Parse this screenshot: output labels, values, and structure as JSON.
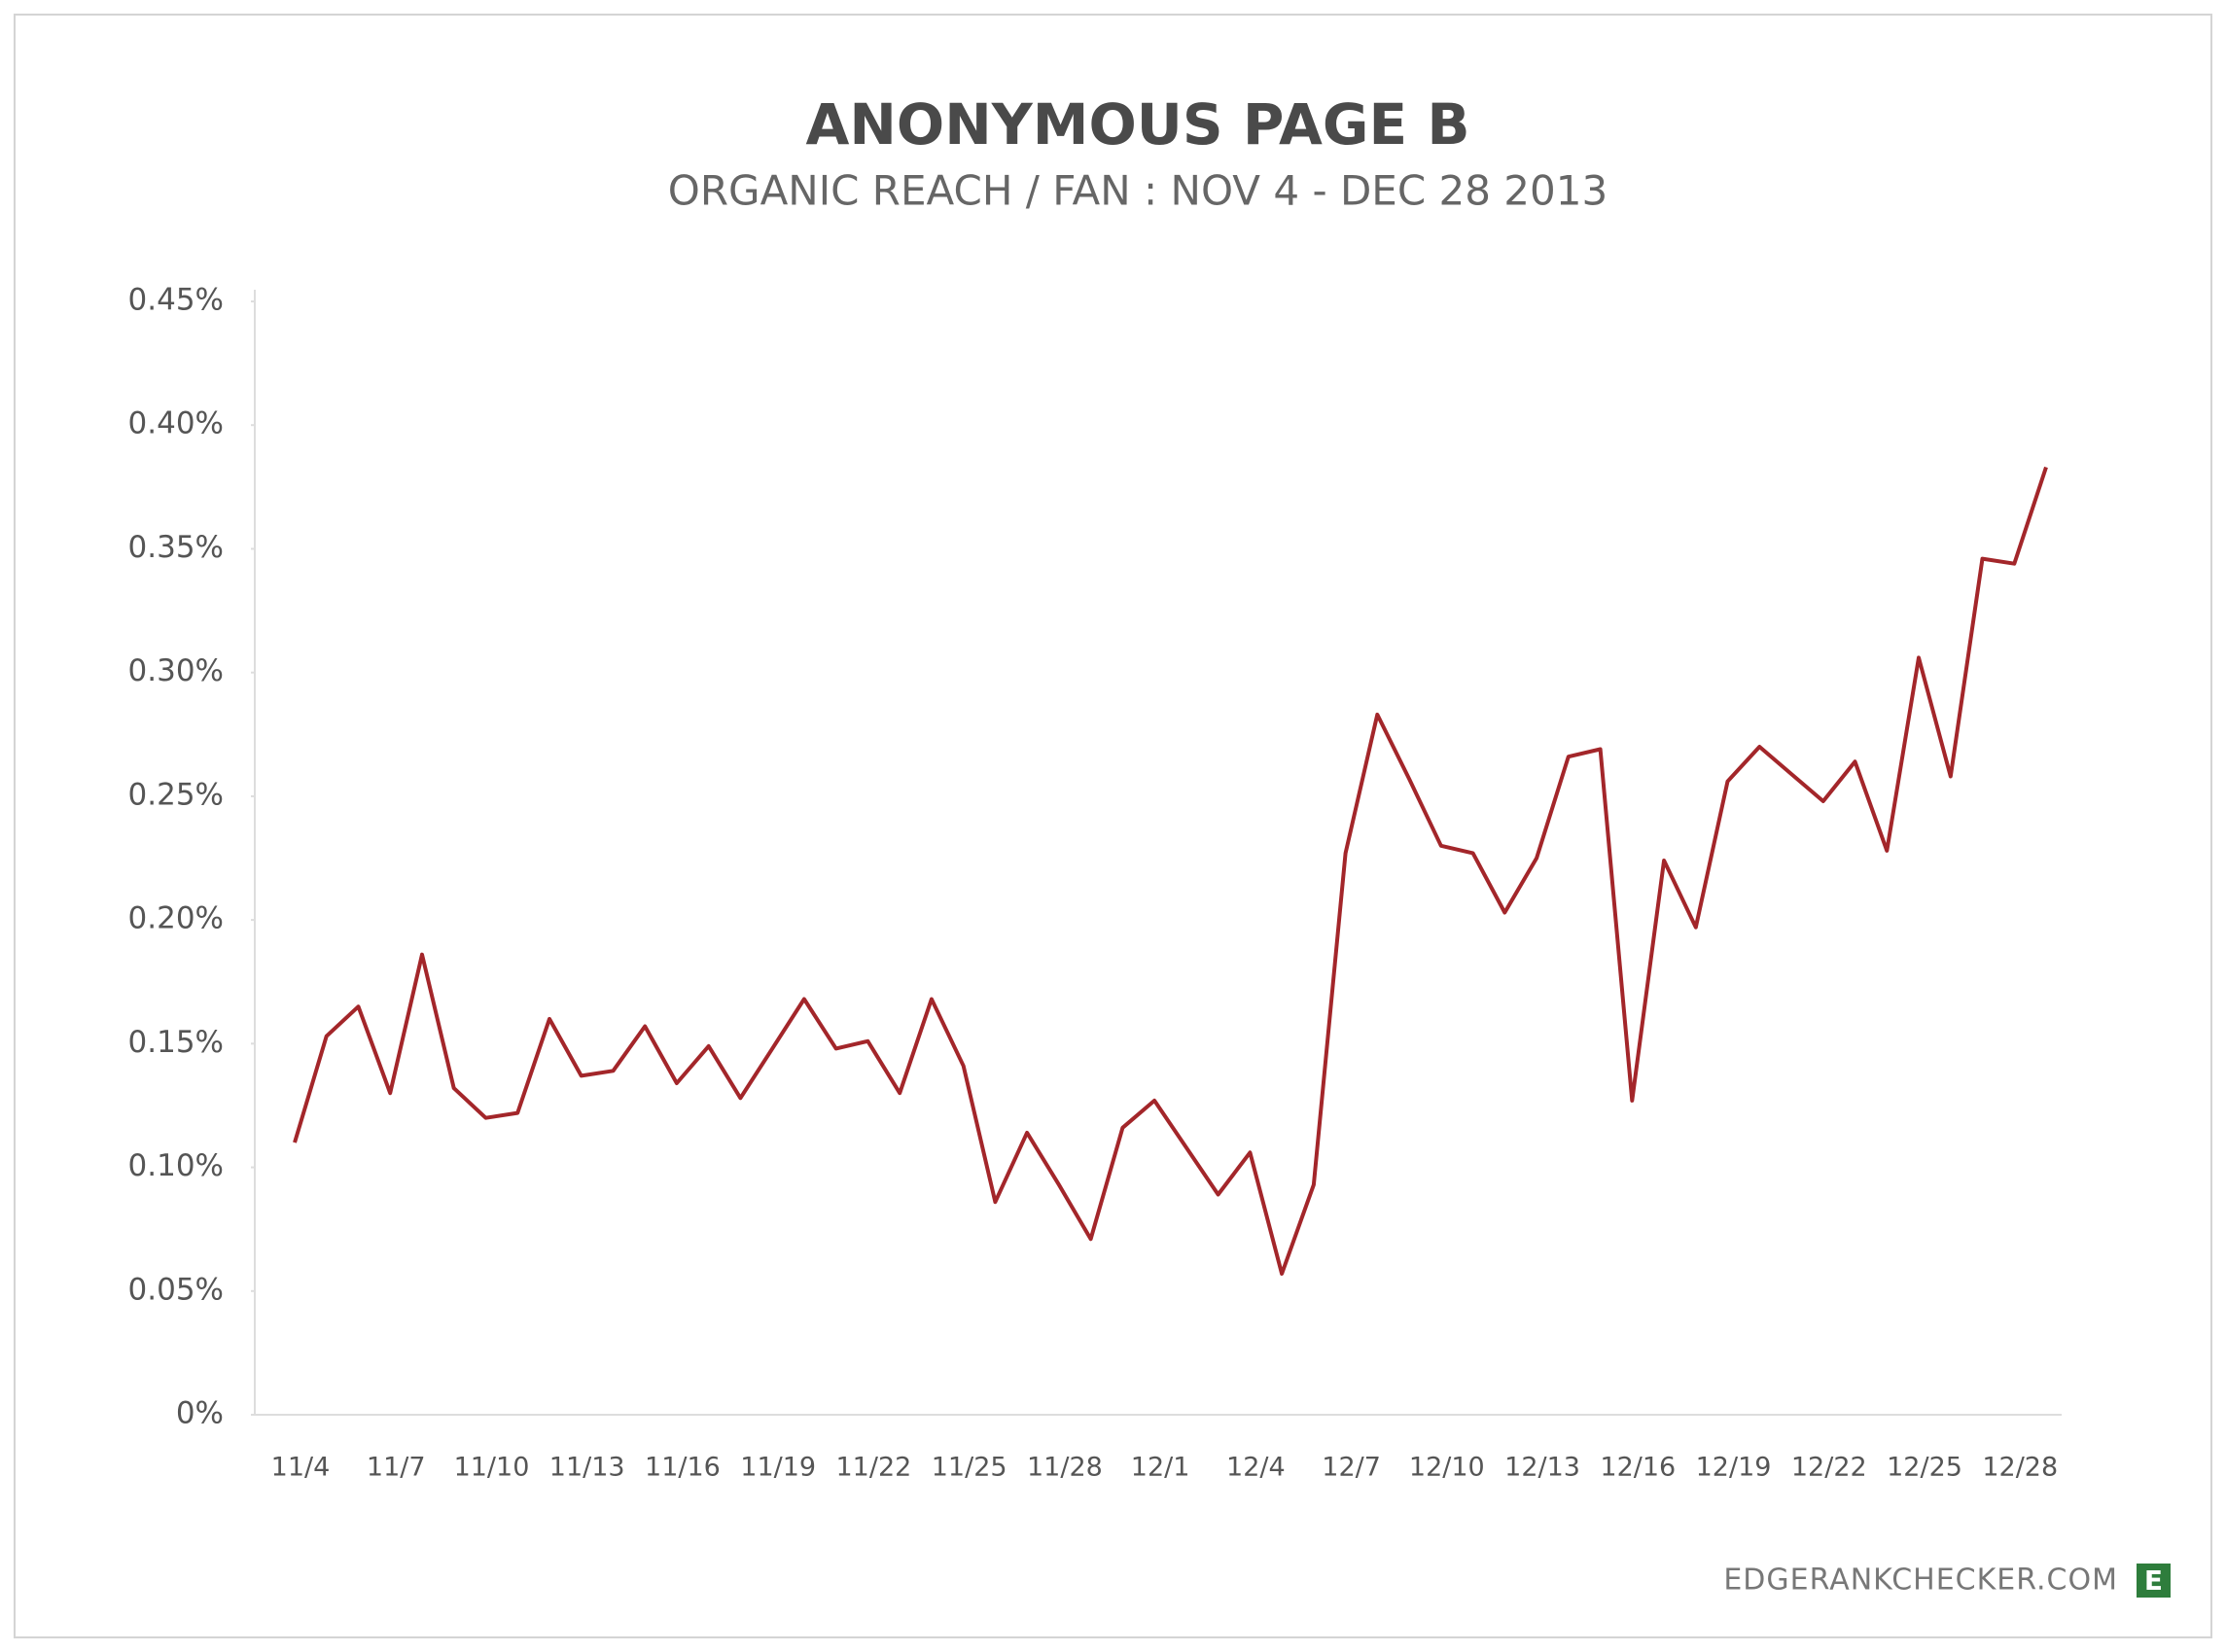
{
  "chart_data": {
    "type": "line",
    "title": "ANONYMOUS PAGE B",
    "subtitle": "ORGANIC REACH / FAN : NOV 4 - DEC 28 2013",
    "footer": "EDGERANKCHECKER.COM",
    "logo": "E",
    "categories": [
      "11/4",
      null,
      null,
      "11/7",
      null,
      null,
      "11/10",
      null,
      null,
      "11/13",
      null,
      null,
      "11/16",
      null,
      null,
      "11/19",
      null,
      null,
      "11/22",
      null,
      null,
      "11/25",
      null,
      null,
      "11/28",
      null,
      null,
      "12/1",
      null,
      null,
      "12/4",
      null,
      null,
      "12/7",
      null,
      null,
      "12/10",
      null,
      null,
      "12/13",
      null,
      null,
      "12/16",
      null,
      null,
      "12/19",
      null,
      null,
      "12/22",
      null,
      null,
      "12/25",
      null,
      null,
      "12/28",
      null
    ],
    "series": [
      {
        "color": "#a3262a",
        "values": [
          0.11,
          0.153,
          0.165,
          0.13,
          0.186,
          0.132,
          0.12,
          0.122,
          0.16,
          0.137,
          0.139,
          0.157,
          0.134,
          0.149,
          0.128,
          0.148,
          0.168,
          0.148,
          0.151,
          0.13,
          0.168,
          0.141,
          0.086,
          0.114,
          0.093,
          0.071,
          0.116,
          0.127,
          0.108,
          0.089,
          0.106,
          0.057,
          0.093,
          0.227,
          0.283,
          0.257,
          0.23,
          0.227,
          0.203,
          0.225,
          0.266,
          0.269,
          0.127,
          0.224,
          0.197,
          0.256,
          0.27,
          0.259,
          0.248,
          0.264,
          0.228,
          0.306,
          0.258,
          0.346,
          0.344,
          0.383
        ]
      }
    ],
    "ylim": [
      0,
      0.45
    ],
    "yticks": [
      {
        "value": 0,
        "label": "0%"
      },
      {
        "value": 0.05,
        "label": "0.05%"
      },
      {
        "value": 0.1,
        "label": "0.10%"
      },
      {
        "value": 0.15,
        "label": "0.15%"
      },
      {
        "value": 0.2,
        "label": "0.20%"
      },
      {
        "value": 0.25,
        "label": "0.25%"
      },
      {
        "value": 0.3,
        "label": "0.30%"
      },
      {
        "value": 0.35,
        "label": "0.35%"
      },
      {
        "value": 0.4,
        "label": "0.40%"
      },
      {
        "value": 0.45,
        "label": "0.45%"
      }
    ],
    "grid": false
  }
}
